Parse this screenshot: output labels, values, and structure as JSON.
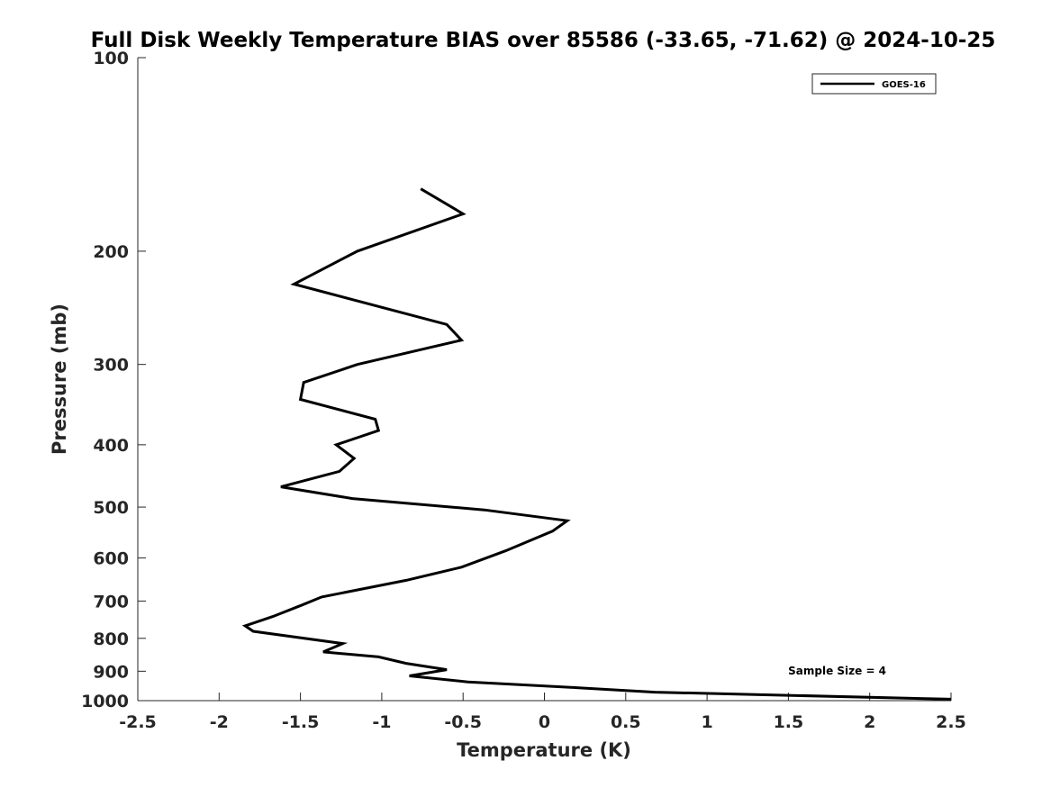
{
  "chart_data": {
    "type": "line",
    "title": "Full Disk Weekly Temperature BIAS over 85586 (-33.65, -71.62) @ 2024-10-25",
    "xlabel": "Temperature (K)",
    "ylabel": "Pressure (mb)",
    "xlim": [
      -2.5,
      2.5
    ],
    "ylim": [
      100,
      1000
    ],
    "y_scale": "log",
    "y_reversed": true,
    "grid": false,
    "legend_position": "top-right",
    "x_ticks": [
      -2.5,
      -2,
      -1.5,
      -1,
      -0.5,
      0,
      0.5,
      1,
      1.5,
      2,
      2.5
    ],
    "x_tick_labels": [
      "-2.5",
      "-2",
      "-1.5",
      "-1",
      "-0.5",
      "0",
      "0.5",
      "1",
      "1.5",
      "2",
      "2.5"
    ],
    "y_ticks": [
      100,
      200,
      300,
      400,
      500,
      600,
      700,
      800,
      900,
      1000
    ],
    "y_tick_labels": [
      "100",
      "200",
      "300",
      "400",
      "500",
      "600",
      "700",
      "800",
      "900",
      "1000"
    ],
    "series": [
      {
        "name": "GOES-16",
        "color": "#000000",
        "points": [
          [
            -0.76,
            160
          ],
          [
            -0.5,
            175
          ],
          [
            -1.15,
            200
          ],
          [
            -1.54,
            225
          ],
          [
            -0.6,
            260
          ],
          [
            -0.51,
            275
          ],
          [
            -1.15,
            300
          ],
          [
            -1.48,
            320
          ],
          [
            -1.5,
            340
          ],
          [
            -1.04,
            365
          ],
          [
            -1.02,
            380
          ],
          [
            -1.28,
            400
          ],
          [
            -1.17,
            420
          ],
          [
            -1.26,
            440
          ],
          [
            -1.62,
            465
          ],
          [
            -1.18,
            485
          ],
          [
            -0.37,
            505
          ],
          [
            0.14,
            525
          ],
          [
            0.05,
            545
          ],
          [
            -0.24,
            585
          ],
          [
            -0.51,
            620
          ],
          [
            -0.85,
            650
          ],
          [
            -1.37,
            690
          ],
          [
            -1.49,
            710
          ],
          [
            -1.67,
            740
          ],
          [
            -1.84,
            765
          ],
          [
            -1.79,
            780
          ],
          [
            -1.24,
            815
          ],
          [
            -1.36,
            840
          ],
          [
            -1.02,
            855
          ],
          [
            -0.85,
            875
          ],
          [
            -0.6,
            895
          ],
          [
            -0.83,
            915
          ],
          [
            -0.47,
            935
          ],
          [
            0.21,
            955
          ],
          [
            0.68,
            970
          ],
          [
            2.5,
            995
          ]
        ]
      }
    ],
    "annotations": [
      {
        "text": "Sample Size = 4",
        "x": 1.8,
        "y": 910
      }
    ]
  }
}
